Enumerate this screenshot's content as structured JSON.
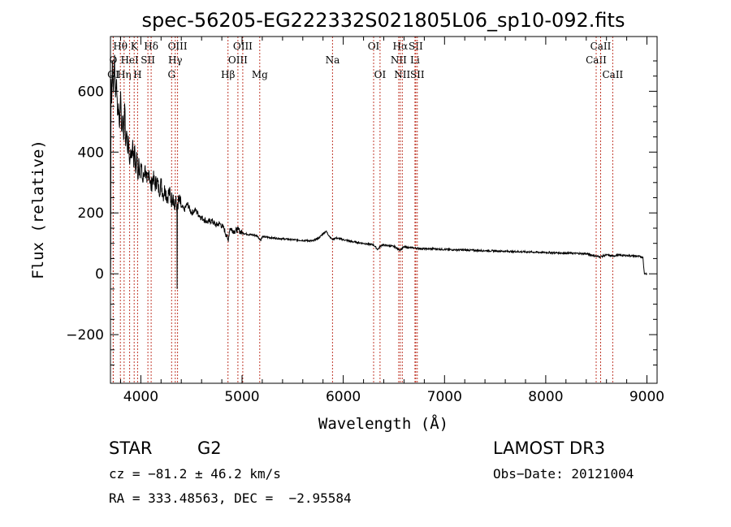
{
  "chart_data": {
    "type": "line",
    "title": "spec-56205-EG222332S021805L06_sp10-092.fits",
    "xlabel": "Wavelength (Å)",
    "ylabel": "Flux (relative)",
    "xlim": [
      3700,
      9100
    ],
    "ylim": [
      -360,
      780
    ],
    "x_ticks": [
      4000,
      5000,
      6000,
      7000,
      8000,
      9000
    ],
    "x_tick_labels": [
      "4000",
      "5000",
      "6000",
      "7000",
      "8000",
      "9000"
    ],
    "y_ticks": [
      -200,
      0,
      200,
      400,
      600
    ],
    "y_tick_labels": [
      "−200",
      "0",
      "200",
      "400",
      "600"
    ],
    "series": [
      {
        "name": "flux",
        "points": [
          [
            3700,
            0
          ],
          [
            3702,
            20
          ],
          [
            3706,
            640
          ],
          [
            3712,
            560
          ],
          [
            3720,
            700
          ],
          [
            3730,
            600
          ],
          [
            3740,
            720
          ],
          [
            3750,
            580
          ],
          [
            3760,
            640
          ],
          [
            3770,
            520
          ],
          [
            3780,
            560
          ],
          [
            3790,
            480
          ],
          [
            3800,
            600
          ],
          [
            3810,
            470
          ],
          [
            3820,
            520
          ],
          [
            3830,
            440
          ],
          [
            3840,
            560
          ],
          [
            3850,
            420
          ],
          [
            3860,
            470
          ],
          [
            3870,
            400
          ],
          [
            3880,
            440
          ],
          [
            3890,
            360
          ],
          [
            3900,
            410
          ],
          [
            3910,
            380
          ],
          [
            3920,
            440
          ],
          [
            3930,
            350
          ],
          [
            3940,
            420
          ],
          [
            3950,
            330
          ],
          [
            3960,
            400
          ],
          [
            3970,
            310
          ],
          [
            3980,
            380
          ],
          [
            3990,
            330
          ],
          [
            4000,
            360
          ],
          [
            4020,
            300
          ],
          [
            4040,
            350
          ],
          [
            4060,
            300
          ],
          [
            4080,
            340
          ],
          [
            4100,
            280
          ],
          [
            4120,
            320
          ],
          [
            4140,
            290
          ],
          [
            4160,
            310
          ],
          [
            4180,
            270
          ],
          [
            4200,
            300
          ],
          [
            4220,
            260
          ],
          [
            4240,
            280
          ],
          [
            4260,
            250
          ],
          [
            4280,
            270
          ],
          [
            4300,
            240
          ],
          [
            4320,
            260
          ],
          [
            4335,
            210
          ],
          [
            4340,
            240
          ],
          [
            4350,
            230
          ],
          [
            4357,
            200
          ],
          [
            4359,
            -50
          ],
          [
            4361,
            230
          ],
          [
            4380,
            240
          ],
          [
            4400,
            220
          ],
          [
            4430,
            210
          ],
          [
            4460,
            230
          ],
          [
            4500,
            200
          ],
          [
            4540,
            210
          ],
          [
            4580,
            190
          ],
          [
            4620,
            180
          ],
          [
            4660,
            170
          ],
          [
            4700,
            175
          ],
          [
            4740,
            160
          ],
          [
            4780,
            165
          ],
          [
            4820,
            150
          ],
          [
            4861,
            110
          ],
          [
            4880,
            150
          ],
          [
            4920,
            140
          ],
          [
            4960,
            145
          ],
          [
            5000,
            135
          ],
          [
            5050,
            130
          ],
          [
            5100,
            128
          ],
          [
            5150,
            125
          ],
          [
            5183,
            110
          ],
          [
            5200,
            122
          ],
          [
            5300,
            118
          ],
          [
            5400,
            115
          ],
          [
            5500,
            112
          ],
          [
            5600,
            110
          ],
          [
            5700,
            108
          ],
          [
            5760,
            118
          ],
          [
            5800,
            132
          ],
          [
            5830,
            140
          ],
          [
            5860,
            125
          ],
          [
            5893,
            112
          ],
          [
            5920,
            118
          ],
          [
            6000,
            112
          ],
          [
            6100,
            105
          ],
          [
            6200,
            100
          ],
          [
            6300,
            95
          ],
          [
            6340,
            80
          ],
          [
            6380,
            95
          ],
          [
            6450,
            92
          ],
          [
            6500,
            90
          ],
          [
            6563,
            78
          ],
          [
            6600,
            88
          ],
          [
            6700,
            85
          ],
          [
            6800,
            82
          ],
          [
            6900,
            82
          ],
          [
            7000,
            80
          ],
          [
            7200,
            78
          ],
          [
            7400,
            76
          ],
          [
            7600,
            74
          ],
          [
            7800,
            72
          ],
          [
            8000,
            70
          ],
          [
            8200,
            68
          ],
          [
            8400,
            66
          ],
          [
            8498,
            58
          ],
          [
            8542,
            56
          ],
          [
            8600,
            62
          ],
          [
            8662,
            58
          ],
          [
            8700,
            61
          ],
          [
            8800,
            60
          ],
          [
            8900,
            58
          ],
          [
            8960,
            55
          ],
          [
            8970,
            15
          ],
          [
            8975,
            0
          ],
          [
            9000,
            0
          ]
        ]
      }
    ],
    "lines": [
      {
        "label": "O",
        "x": 3727,
        "row": 1
      },
      {
        "label": "OI",
        "x": 3727,
        "row": 2
      },
      {
        "label": "Hθ",
        "x": 3798,
        "row": 0
      },
      {
        "label": "Hη",
        "x": 3835,
        "row": 2
      },
      {
        "label": "HeI",
        "x": 3889,
        "row": 1
      },
      {
        "label": "K",
        "x": 3934,
        "row": 0
      },
      {
        "label": "H",
        "x": 3968,
        "row": 2
      },
      {
        "label": "SII",
        "x": 4070,
        "row": 1
      },
      {
        "label": "Hδ",
        "x": 4102,
        "row": 0
      },
      {
        "label": "G",
        "x": 4304,
        "row": 2
      },
      {
        "label": "OIII",
        "x": 4363,
        "row": 0
      },
      {
        "label": "Hγ",
        "x": 4340,
        "row": 1
      },
      {
        "label": "Hβ",
        "x": 4861,
        "row": 2
      },
      {
        "label": "OIII",
        "x": 4959,
        "row": 1
      },
      {
        "label": "OIII",
        "x": 5007,
        "row": 0
      },
      {
        "label": "Mg",
        "x": 5175,
        "row": 2
      },
      {
        "label": "Na",
        "x": 5894,
        "row": 1
      },
      {
        "label": "OI",
        "x": 6300,
        "row": 0
      },
      {
        "label": "OI",
        "x": 6363,
        "row": 2
      },
      {
        "label": "NII",
        "x": 6548,
        "row": 1
      },
      {
        "label": "Hα",
        "x": 6563,
        "row": 0
      },
      {
        "label": "NII",
        "x": 6583,
        "row": 2
      },
      {
        "label": "Li",
        "x": 6708,
        "row": 1
      },
      {
        "label": "SII",
        "x": 6716,
        "row": 0
      },
      {
        "label": "SII",
        "x": 6731,
        "row": 2
      },
      {
        "label": "CaII",
        "x": 8498,
        "row": 1
      },
      {
        "label": "CaII",
        "x": 8542,
        "row": 0
      },
      {
        "label": "CaII",
        "x": 8662,
        "row": 2
      }
    ]
  },
  "info": {
    "object_class": "STAR",
    "subclass": "G2",
    "survey": "LAMOST DR3",
    "redshift": "cz = −81.2 ± 46.2 km/s",
    "obs_date": "Obs−Date: 20121004",
    "coords": "RA = 333.48563, DEC =  −2.95584"
  }
}
